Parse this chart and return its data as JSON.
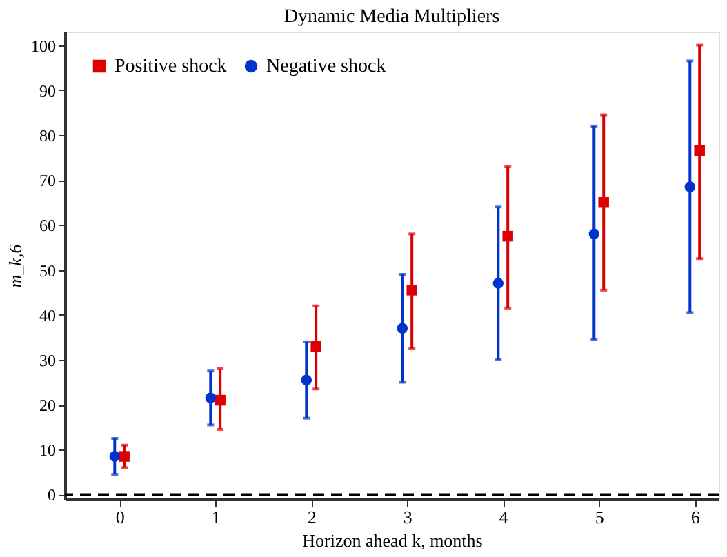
{
  "chart_data": {
    "type": "scatter",
    "title": "Dynamic Media Multipliers",
    "xlabel": "Horizon ahead k, months",
    "ylabel": "m_k,6",
    "xlim": [
      -0.57,
      6.25
    ],
    "xticks": [
      0,
      1,
      2,
      3,
      4,
      5,
      6
    ],
    "ylim": [
      -1,
      103
    ],
    "yticks": [
      0,
      10,
      20,
      30,
      40,
      50,
      60,
      70,
      80,
      90,
      100
    ],
    "grid": false,
    "legend": "top left",
    "series": [
      {
        "name": "Positive shock",
        "color": "#dd0000",
        "marker": "square",
        "x": [
          0.05,
          1.05,
          2.05,
          3.05,
          4.05,
          5.05,
          6.05
        ],
        "values": [
          8.5,
          21,
          33,
          45.5,
          57.5,
          65,
          76.5
        ],
        "errors": [
          [
            6,
            11
          ],
          [
            14.5,
            28
          ],
          [
            23.5,
            42
          ],
          [
            32.5,
            58
          ],
          [
            41.5,
            73
          ],
          [
            45.5,
            84.5
          ],
          [
            52.5,
            100
          ]
        ]
      },
      {
        "name": "Negative shock",
        "color": "#0033cc",
        "marker": "circle",
        "x": [
          -0.05,
          0.95,
          1.95,
          2.95,
          3.95,
          4.95,
          5.95
        ],
        "values": [
          8.5,
          21.5,
          25.5,
          37,
          47,
          58,
          68.5
        ],
        "errors": [
          [
            4.5,
            12.5
          ],
          [
            15.5,
            27.5
          ],
          [
            17,
            34
          ],
          [
            25,
            49
          ],
          [
            30,
            64
          ],
          [
            34.5,
            82
          ],
          [
            40.5,
            96.5
          ]
        ]
      }
    ],
    "ref_lines": [
      {
        "axis": "y",
        "value": 0,
        "color": "#000000",
        "line_style": "dashed"
      }
    ]
  }
}
